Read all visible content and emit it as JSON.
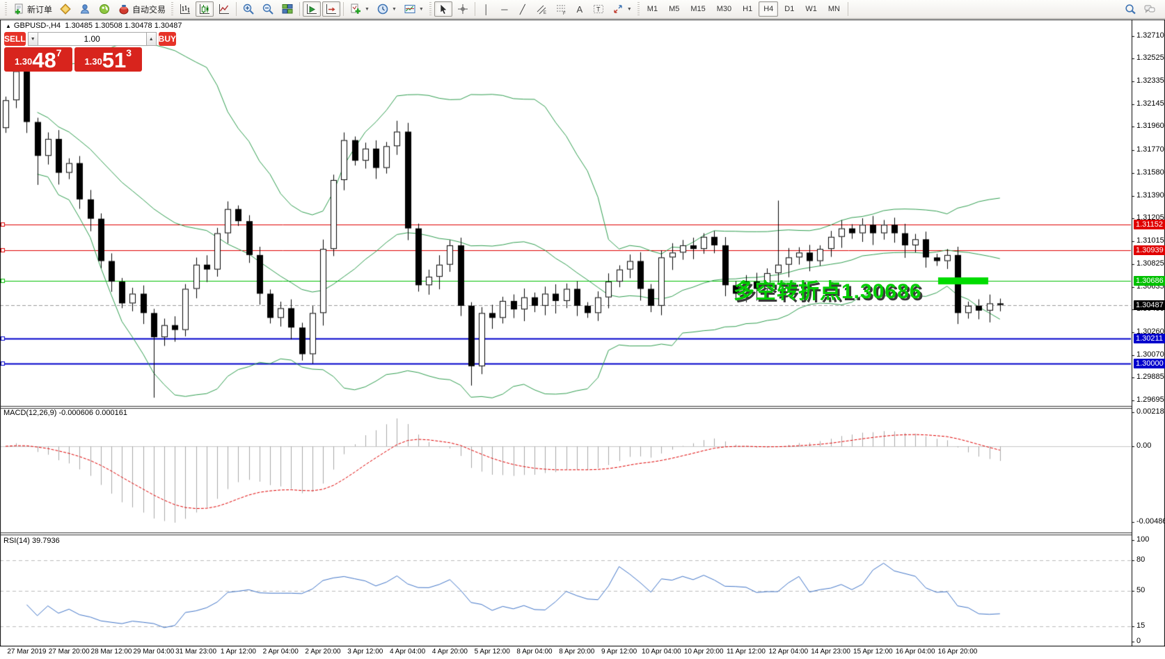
{
  "toolbar": {
    "new_order": "新订单",
    "autotrade": "自动交易",
    "timeframes": [
      "M1",
      "M5",
      "M15",
      "M30",
      "H1",
      "H4",
      "D1",
      "W1",
      "MN"
    ],
    "selected_timeframe": "H4"
  },
  "icons": {
    "caret": "▼",
    "spin_up": "▲",
    "spin_down": "▼",
    "collapse": "▲",
    "vertical_line": "│",
    "horizontal_line": "─",
    "trendline": "╱",
    "text_tool": "A"
  },
  "chart": {
    "symbol_line": {
      "text": "GBPUSD-,H4  1.30485 1.30508 1.30478 1.30487"
    },
    "one_click": {
      "sell_label": "SELL",
      "buy_label": "BUY",
      "volume": "1.00",
      "sell_small": "1.30",
      "sell_big": "48",
      "sell_sup": "7",
      "buy_small": "1.30",
      "buy_big": "51",
      "buy_sup": "3"
    },
    "annotation": {
      "text": "多空转折点1.30686"
    },
    "price_ticks": [
      "1.32710",
      "1.32525",
      "1.32335",
      "1.32145",
      "1.31960",
      "1.31770",
      "1.31580",
      "1.31390",
      "1.31205",
      "1.31015",
      "1.30825",
      "1.30635",
      "1.30450",
      "1.30260",
      "1.30070",
      "1.29885",
      "1.29695"
    ],
    "time_labels": [
      "27 Mar 2019",
      "27 Mar 20:00",
      "28 Mar 12:00",
      "29 Mar 04:00",
      "31 Mar 23:00",
      "1 Apr 12:00",
      "2 Apr 04:00",
      "2 Apr 20:00",
      "3 Apr 12:00",
      "4 Apr 04:00",
      "4 Apr 20:00",
      "5 Apr 12:00",
      "8 Apr 04:00",
      "8 Apr 20:00",
      "9 Apr 12:00",
      "10 Apr 04:00",
      "10 Apr 20:00",
      "11 Apr 12:00",
      "12 Apr 04:00",
      "14 Apr 23:00",
      "15 Apr 12:00",
      "16 Apr 04:00",
      "16 Apr 20:00"
    ],
    "current_price_label": "1.30487"
  },
  "macd": {
    "label": "MACD(12,26,9) -0.000606 0.000161",
    "axis": [
      "0.002183",
      "0.00",
      "-0.004861"
    ]
  },
  "rsi": {
    "label": "RSI(14) 39.7936",
    "axis": [
      "100",
      "80",
      "50",
      "15",
      "0"
    ],
    "levels": [
      80,
      50,
      15
    ]
  },
  "chart_data": {
    "type": "candlestick",
    "symbol": "GBPUSD-",
    "timeframe": "H4",
    "first_open": 1.3195,
    "closes": [
      1.3218,
      1.3242,
      1.32,
      1.3172,
      1.3186,
      1.3158,
      1.3166,
      1.3136,
      1.312,
      1.3085,
      1.3068,
      1.305,
      1.3058,
      1.3042,
      1.3022,
      1.3032,
      1.3028,
      1.3062,
      1.3082,
      1.3078,
      1.3108,
      1.3128,
      1.3118,
      1.309,
      1.3058,
      1.3038,
      1.3046,
      1.303,
      1.3008,
      1.3042,
      1.3095,
      1.3152,
      1.3185,
      1.3168,
      1.3178,
      1.3162,
      1.318,
      1.3192,
      1.3112,
      1.3065,
      1.3072,
      1.3082,
      1.3098,
      1.3048,
      1.2998,
      1.3042,
      1.3038,
      1.3052,
      1.3045,
      1.3055,
      1.3048,
      1.3058,
      1.3052,
      1.3062,
      1.3048,
      1.3042,
      1.3055,
      1.3068,
      1.3078,
      1.3085,
      1.3062,
      1.3048,
      1.3088,
      1.3092,
      1.3098,
      1.3095,
      1.3105,
      1.3098,
      1.3065,
      1.3058,
      1.3068,
      1.3062,
      1.3075,
      1.3082,
      1.3088,
      1.3092,
      1.3085,
      1.3095,
      1.3105,
      1.3112,
      1.3108,
      1.3115,
      1.3108,
      1.3115,
      1.3108,
      1.3098,
      1.3103,
      1.3088,
      1.3085,
      1.309,
      1.3042,
      1.3048,
      1.3044,
      1.305,
      1.30487
    ],
    "wick_overrides": {
      "1": {
        "h": 1.325
      },
      "3": {
        "l": 1.3148
      },
      "14": {
        "l": 1.2972
      },
      "37": {
        "h": 1.3201
      },
      "44": {
        "l": 1.2982
      },
      "73": {
        "h": 1.3135
      }
    },
    "hlines": [
      {
        "price": 1.31152,
        "label": "1.31152",
        "color": "#e00000",
        "width": 1
      },
      {
        "price": 1.30939,
        "label": "1.30939",
        "color": "#e00000",
        "width": 1
      },
      {
        "price": 1.30686,
        "label": "1.30686",
        "color": "#00c000",
        "width": 1
      },
      {
        "price": 1.30211,
        "label": "1.30211",
        "color": "#0000cc",
        "width": 2
      },
      {
        "price": 1.3,
        "label": "1.30000",
        "color": "#0000cc",
        "width": 2
      }
    ],
    "current_price": 1.30487,
    "indicators": {
      "bollinger": {
        "period": 20,
        "deviation": 2,
        "color": "#2f9e4f"
      },
      "macd": {
        "fast": 12,
        "slow": 26,
        "signal": 9,
        "current_main": -0.000606,
        "current_signal": 0.000161
      },
      "rsi": {
        "period": 14,
        "current": 39.7936
      }
    },
    "ohlc_readout": {
      "open": 1.30485,
      "high": 1.30508,
      "low": 1.30478,
      "close": 1.30487
    }
  }
}
